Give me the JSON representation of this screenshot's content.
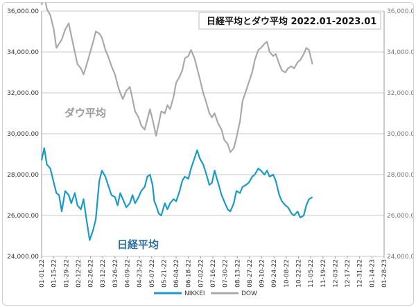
{
  "chart_data": {
    "type": "line",
    "title": "日経平均とダウ平均 2022.01-2023.01",
    "annotations": {
      "dow": "ダウ平均",
      "nikkei": "日経平均"
    },
    "colors": {
      "nikkei": "#1a9bc7",
      "dow": "#a9a9a9"
    },
    "y_left": {
      "min": 24000,
      "max": 36000,
      "ticks": [
        "24,000.00",
        "26,000.00",
        "28,000.00",
        "30,000.00",
        "32,000.00",
        "34,000.00",
        "36,000.00"
      ]
    },
    "y_right": {
      "min": 24000,
      "max": 36000,
      "ticks": [
        "24,000.00",
        "26,000.00",
        "28,000.00",
        "30,000.00",
        "32,000.00",
        "34,000.00",
        "36,000.00"
      ]
    },
    "x_ticks": [
      "01-01-22",
      "01-15-22",
      "01-29-22",
      "02-12-22",
      "02-26-22",
      "03-12-22",
      "03-26-22",
      "04-09-22",
      "04-23-22",
      "05-07-22",
      "05-21-22",
      "06-04-22",
      "06-18-22",
      "07-02-22",
      "07-16-22",
      "07-30-22",
      "08-13-22",
      "08-27-22",
      "09-10-22",
      "09-24-22",
      "10-08-22",
      "10-22-22",
      "11-05-22",
      "11-19-22",
      "12-03-22",
      "12-17-22",
      "12-31-22",
      "01-14-23",
      "01-28-23"
    ],
    "grid": "horizontal",
    "legend": "bottom",
    "series": [
      {
        "name": "NIKKEI",
        "values": [
          [
            0,
            28700
          ],
          [
            3,
            29300
          ],
          [
            6,
            28500
          ],
          [
            10,
            28300
          ],
          [
            14,
            27600
          ],
          [
            17,
            27100
          ],
          [
            20,
            27000
          ],
          [
            23,
            26200
          ],
          [
            27,
            27200
          ],
          [
            31,
            27000
          ],
          [
            34,
            26600
          ],
          [
            38,
            27100
          ],
          [
            41,
            26500
          ],
          [
            45,
            26300
          ],
          [
            48,
            26800
          ],
          [
            51,
            25900
          ],
          [
            55,
            24800
          ],
          [
            59,
            25300
          ],
          [
            62,
            25800
          ],
          [
            66,
            27700
          ],
          [
            69,
            28200
          ],
          [
            73,
            27900
          ],
          [
            76,
            27500
          ],
          [
            80,
            27000
          ],
          [
            84,
            26900
          ],
          [
            87,
            26500
          ],
          [
            90,
            27100
          ],
          [
            93,
            26800
          ],
          [
            97,
            26400
          ],
          [
            101,
            26600
          ],
          [
            104,
            27000
          ],
          [
            107,
            26600
          ],
          [
            111,
            26900
          ],
          [
            114,
            27200
          ],
          [
            118,
            27400
          ],
          [
            121,
            27900
          ],
          [
            124,
            28000
          ],
          [
            127,
            27500
          ],
          [
            129,
            26700
          ],
          [
            131,
            26500
          ],
          [
            134,
            26100
          ],
          [
            137,
            26000
          ],
          [
            141,
            26600
          ],
          [
            144,
            26300
          ],
          [
            147,
            26600
          ],
          [
            151,
            26800
          ],
          [
            154,
            26700
          ],
          [
            158,
            27200
          ],
          [
            161,
            27700
          ],
          [
            164,
            27900
          ],
          [
            168,
            27800
          ],
          [
            171,
            28300
          ],
          [
            175,
            28800
          ],
          [
            178,
            29200
          ],
          [
            181,
            28800
          ],
          [
            185,
            28500
          ],
          [
            188,
            28100
          ],
          [
            192,
            27500
          ],
          [
            195,
            27600
          ],
          [
            198,
            28200
          ],
          [
            202,
            27600
          ],
          [
            206,
            27000
          ],
          [
            209,
            26700
          ],
          [
            213,
            26300
          ],
          [
            216,
            26200
          ],
          [
            220,
            26600
          ],
          [
            223,
            27200
          ],
          [
            227,
            27100
          ],
          [
            230,
            27400
          ],
          [
            234,
            27500
          ],
          [
            237,
            27600
          ],
          [
            241,
            27900
          ],
          [
            244,
            28000
          ],
          [
            248,
            28300
          ],
          [
            251,
            28200
          ],
          [
            255,
            28000
          ],
          [
            258,
            28200
          ],
          [
            261,
            27900
          ],
          [
            265,
            28000
          ],
          [
            268,
            27700
          ],
          [
            272,
            27000
          ],
          [
            275,
            26700
          ],
          [
            279,
            26500
          ],
          [
            282,
            26400
          ],
          [
            286,
            26100
          ],
          [
            289,
            26000
          ],
          [
            293,
            26200
          ],
          [
            296,
            25900
          ],
          [
            300,
            26000
          ],
          [
            303,
            26500
          ],
          [
            306,
            26800
          ],
          [
            310,
            26900
          ]
        ]
      },
      {
        "name": "DOW",
        "values": [
          [
            0,
            36300
          ],
          [
            3,
            36800
          ],
          [
            6,
            36100
          ],
          [
            10,
            35800
          ],
          [
            14,
            35100
          ],
          [
            17,
            34200
          ],
          [
            20,
            34400
          ],
          [
            23,
            34600
          ],
          [
            27,
            35100
          ],
          [
            31,
            35400
          ],
          [
            34,
            34800
          ],
          [
            38,
            34000
          ],
          [
            41,
            33400
          ],
          [
            45,
            33200
          ],
          [
            48,
            32900
          ],
          [
            51,
            33300
          ],
          [
            55,
            33900
          ],
          [
            59,
            34500
          ],
          [
            62,
            35000
          ],
          [
            66,
            34900
          ],
          [
            69,
            34700
          ],
          [
            73,
            34100
          ],
          [
            76,
            33800
          ],
          [
            80,
            33300
          ],
          [
            84,
            32900
          ],
          [
            87,
            32400
          ],
          [
            90,
            32000
          ],
          [
            93,
            31700
          ],
          [
            97,
            32100
          ],
          [
            101,
            32300
          ],
          [
            104,
            31700
          ],
          [
            107,
            31100
          ],
          [
            111,
            30800
          ],
          [
            114,
            30400
          ],
          [
            118,
            30200
          ],
          [
            121,
            30700
          ],
          [
            124,
            31200
          ],
          [
            127,
            30700
          ],
          [
            129,
            30300
          ],
          [
            131,
            29900
          ],
          [
            134,
            30500
          ],
          [
            137,
            31100
          ],
          [
            141,
            31000
          ],
          [
            144,
            31400
          ],
          [
            147,
            31200
          ],
          [
            151,
            31800
          ],
          [
            154,
            32500
          ],
          [
            158,
            32800
          ],
          [
            161,
            33100
          ],
          [
            164,
            33700
          ],
          [
            168,
            33800
          ],
          [
            171,
            34100
          ],
          [
            175,
            33700
          ],
          [
            178,
            33200
          ],
          [
            181,
            32700
          ],
          [
            185,
            32000
          ],
          [
            188,
            31600
          ],
          [
            192,
            31000
          ],
          [
            195,
            30800
          ],
          [
            198,
            31000
          ],
          [
            202,
            30500
          ],
          [
            206,
            30200
          ],
          [
            209,
            29700
          ],
          [
            213,
            29500
          ],
          [
            216,
            29100
          ],
          [
            220,
            29300
          ],
          [
            223,
            29800
          ],
          [
            227,
            30600
          ],
          [
            230,
            31600
          ],
          [
            234,
            32100
          ],
          [
            237,
            32500
          ],
          [
            241,
            33000
          ],
          [
            244,
            33600
          ],
          [
            248,
            34100
          ],
          [
            251,
            34200
          ],
          [
            255,
            34400
          ],
          [
            258,
            34500
          ],
          [
            261,
            34000
          ],
          [
            265,
            33800
          ],
          [
            268,
            33900
          ],
          [
            272,
            33400
          ],
          [
            275,
            33100
          ],
          [
            279,
            33000
          ],
          [
            282,
            33200
          ],
          [
            286,
            33300
          ],
          [
            289,
            33200
          ],
          [
            293,
            33500
          ],
          [
            296,
            33600
          ],
          [
            300,
            33900
          ],
          [
            303,
            34200
          ],
          [
            306,
            34100
          ],
          [
            310,
            33400
          ]
        ]
      }
    ]
  }
}
